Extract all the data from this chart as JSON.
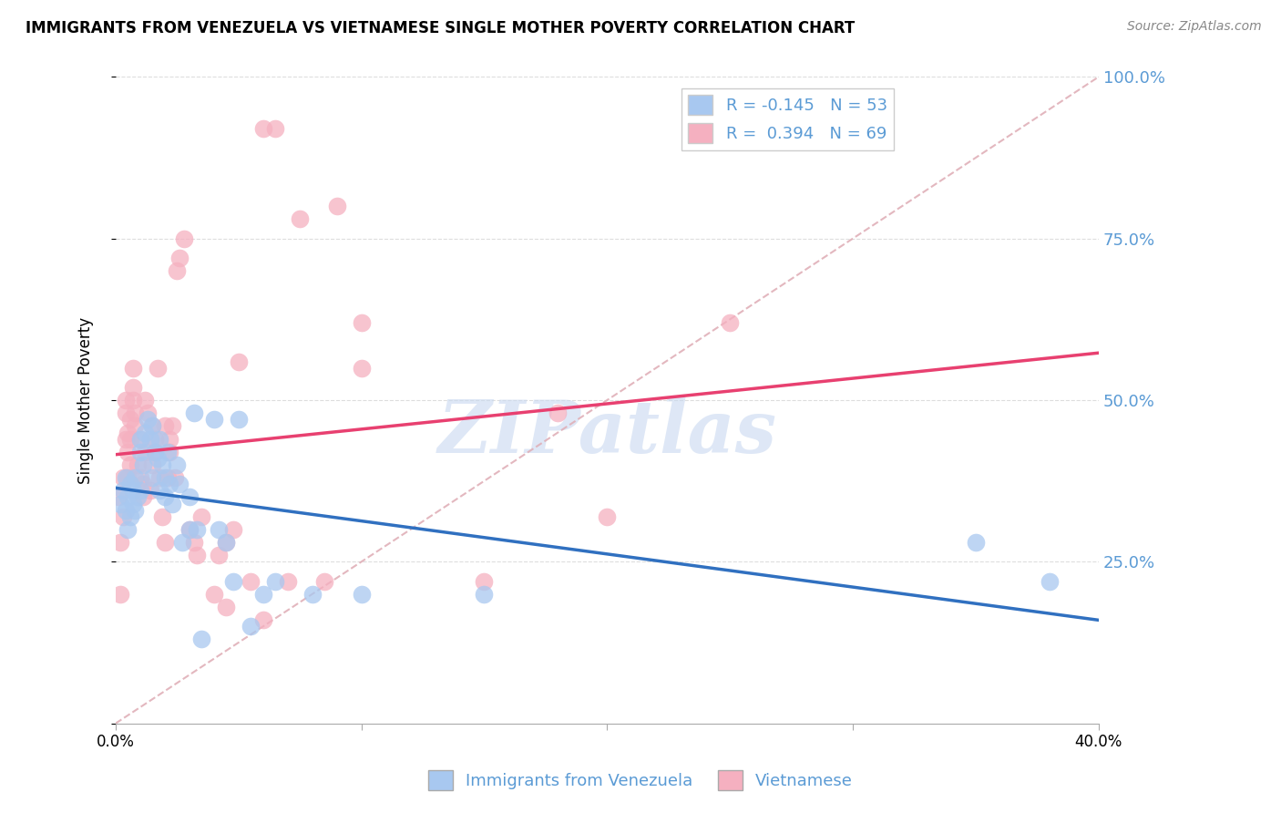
{
  "title": "IMMIGRANTS FROM VENEZUELA VS VIETNAMESE SINGLE MOTHER POVERTY CORRELATION CHART",
  "source": "Source: ZipAtlas.com",
  "xlabel_blue": "Immigrants from Venezuela",
  "xlabel_pink": "Vietnamese",
  "ylabel": "Single Mother Poverty",
  "xlim": [
    0.0,
    0.4
  ],
  "ylim": [
    0.0,
    1.0
  ],
  "ytick_labels_right": [
    "100.0%",
    "75.0%",
    "50.0%",
    "25.0%"
  ],
  "ytick_vals_right": [
    1.0,
    0.75,
    0.5,
    0.25
  ],
  "legend_r_blue": "-0.145",
  "legend_n_blue": "53",
  "legend_r_pink": "0.394",
  "legend_n_pink": "69",
  "blue_scatter_color": "#A8C8F0",
  "pink_scatter_color": "#F5B0C0",
  "line_blue_color": "#3070C0",
  "line_pink_color": "#E84070",
  "dashed_line_color": "#E0B0B8",
  "right_axis_color": "#5B9BD5",
  "watermark_color": "#C8D8F0",
  "grid_color": "#DDDDDD",
  "blue_points_x": [
    0.002,
    0.003,
    0.004,
    0.004,
    0.005,
    0.005,
    0.006,
    0.006,
    0.007,
    0.007,
    0.008,
    0.008,
    0.009,
    0.01,
    0.01,
    0.01,
    0.011,
    0.012,
    0.013,
    0.014,
    0.015,
    0.015,
    0.016,
    0.017,
    0.018,
    0.018,
    0.019,
    0.02,
    0.02,
    0.021,
    0.022,
    0.023,
    0.025,
    0.026,
    0.027,
    0.03,
    0.03,
    0.032,
    0.033,
    0.035,
    0.04,
    0.042,
    0.045,
    0.048,
    0.05,
    0.055,
    0.06,
    0.065,
    0.08,
    0.1,
    0.15,
    0.35,
    0.38
  ],
  "blue_points_y": [
    0.34,
    0.36,
    0.38,
    0.33,
    0.35,
    0.3,
    0.37,
    0.32,
    0.36,
    0.34,
    0.38,
    0.33,
    0.35,
    0.44,
    0.42,
    0.36,
    0.4,
    0.45,
    0.47,
    0.44,
    0.46,
    0.38,
    0.42,
    0.41,
    0.44,
    0.36,
    0.4,
    0.38,
    0.35,
    0.42,
    0.37,
    0.34,
    0.4,
    0.37,
    0.28,
    0.3,
    0.35,
    0.48,
    0.3,
    0.13,
    0.47,
    0.3,
    0.28,
    0.22,
    0.47,
    0.15,
    0.2,
    0.22,
    0.2,
    0.2,
    0.2,
    0.28,
    0.22
  ],
  "pink_points_x": [
    0.001,
    0.002,
    0.002,
    0.003,
    0.003,
    0.004,
    0.004,
    0.004,
    0.005,
    0.005,
    0.005,
    0.006,
    0.006,
    0.006,
    0.007,
    0.007,
    0.007,
    0.008,
    0.008,
    0.009,
    0.01,
    0.01,
    0.011,
    0.011,
    0.012,
    0.012,
    0.013,
    0.014,
    0.015,
    0.015,
    0.016,
    0.016,
    0.017,
    0.018,
    0.019,
    0.02,
    0.02,
    0.021,
    0.022,
    0.022,
    0.023,
    0.024,
    0.025,
    0.026,
    0.028,
    0.03,
    0.032,
    0.033,
    0.035,
    0.04,
    0.042,
    0.045,
    0.048,
    0.05,
    0.055,
    0.06,
    0.065,
    0.075,
    0.09,
    0.1,
    0.085,
    0.1,
    0.15,
    0.2,
    0.25,
    0.18,
    0.045,
    0.06,
    0.07
  ],
  "pink_points_y": [
    0.35,
    0.28,
    0.2,
    0.38,
    0.32,
    0.5,
    0.48,
    0.44,
    0.42,
    0.45,
    0.38,
    0.47,
    0.44,
    0.4,
    0.55,
    0.52,
    0.5,
    0.48,
    0.46,
    0.4,
    0.38,
    0.44,
    0.37,
    0.35,
    0.42,
    0.5,
    0.48,
    0.36,
    0.46,
    0.4,
    0.44,
    0.42,
    0.55,
    0.38,
    0.32,
    0.28,
    0.46,
    0.38,
    0.44,
    0.42,
    0.46,
    0.38,
    0.7,
    0.72,
    0.75,
    0.3,
    0.28,
    0.26,
    0.32,
    0.2,
    0.26,
    0.28,
    0.3,
    0.56,
    0.22,
    0.92,
    0.92,
    0.78,
    0.8,
    0.62,
    0.22,
    0.55,
    0.22,
    0.32,
    0.62,
    0.48,
    0.18,
    0.16,
    0.22
  ]
}
